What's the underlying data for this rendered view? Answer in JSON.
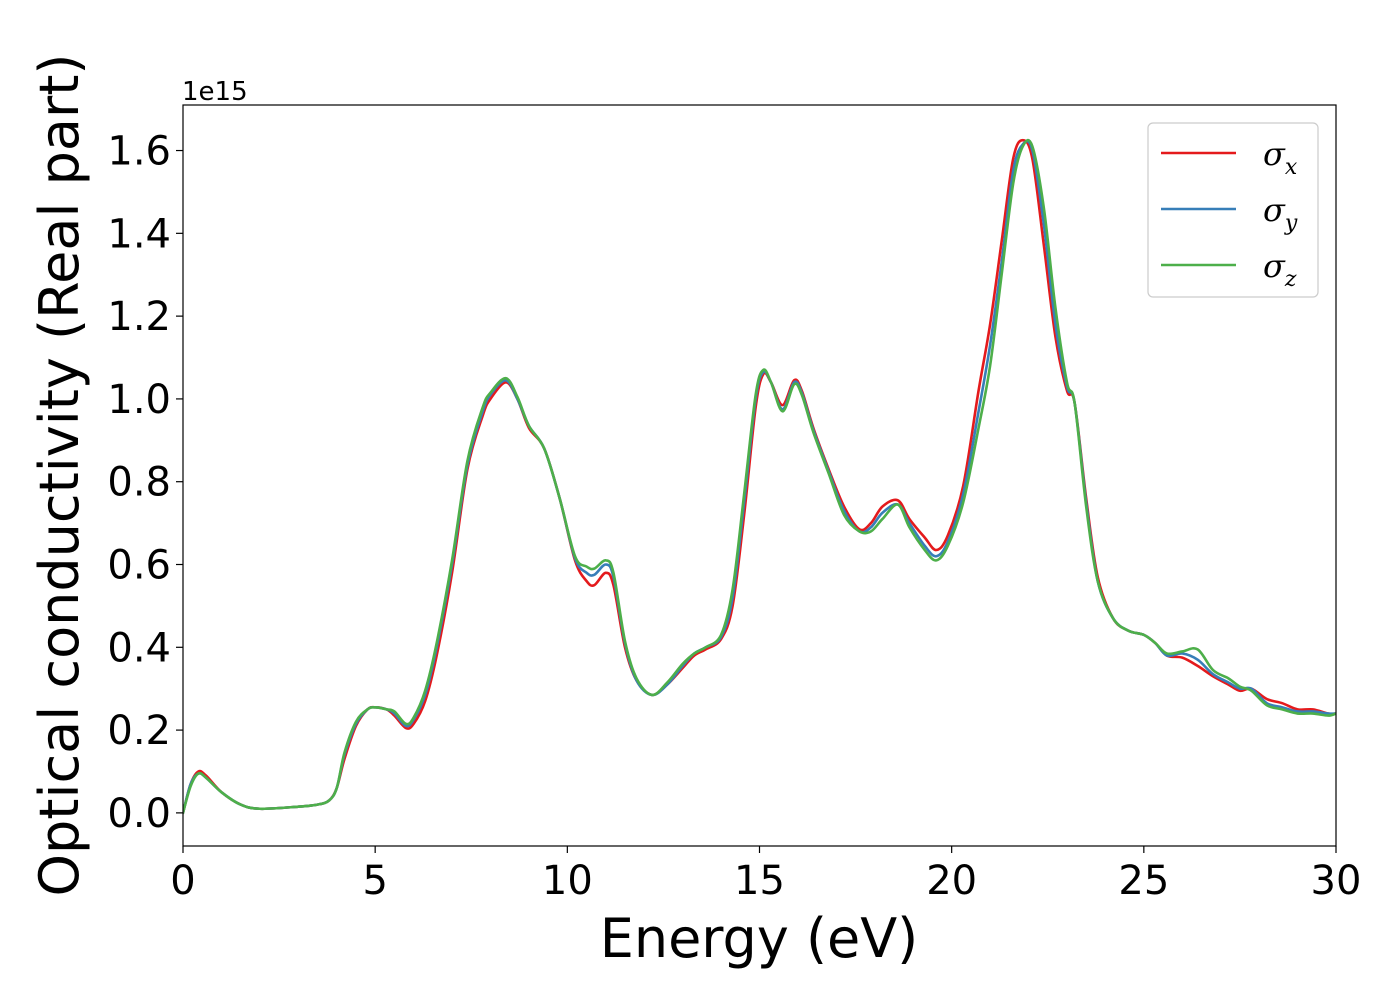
{
  "chart_data": {
    "type": "line",
    "title": "",
    "xlabel": "Energy (eV)",
    "ylabel": "Optical conductivity (Real part)",
    "y_offset_label": "1e15",
    "xlim": [
      0,
      30
    ],
    "ylim": [
      -0.08,
      1.71
    ],
    "xticks": [
      0,
      5,
      10,
      15,
      20,
      25,
      30
    ],
    "xtick_labels": [
      "0",
      "5",
      "10",
      "15",
      "20",
      "25",
      "30"
    ],
    "yticks": [
      0.0,
      0.2,
      0.4,
      0.6,
      0.8,
      1.0,
      1.2,
      1.4,
      1.6
    ],
    "ytick_labels": [
      "0.0",
      "0.2",
      "0.4",
      "0.6",
      "0.8",
      "1.0",
      "1.2",
      "1.4",
      "1.6"
    ],
    "grid": false,
    "legend_position": "top-right",
    "series": [
      {
        "name": "σx",
        "legend": {
          "base": "σ",
          "sub": "x"
        },
        "color": "#e41a1c",
        "points": [
          [
            0,
            0
          ],
          [
            0.2,
            0.07
          ],
          [
            0.4,
            0.1
          ],
          [
            0.6,
            0.09
          ],
          [
            1.0,
            0.05
          ],
          [
            1.5,
            0.02
          ],
          [
            2.0,
            0.01
          ],
          [
            3.0,
            0.015
          ],
          [
            3.5,
            0.02
          ],
          [
            3.8,
            0.03
          ],
          [
            4.0,
            0.06
          ],
          [
            4.2,
            0.13
          ],
          [
            4.5,
            0.21
          ],
          [
            4.8,
            0.25
          ],
          [
            5.0,
            0.255
          ],
          [
            5.3,
            0.25
          ],
          [
            5.5,
            0.235
          ],
          [
            5.8,
            0.205
          ],
          [
            6.0,
            0.215
          ],
          [
            6.3,
            0.27
          ],
          [
            6.6,
            0.38
          ],
          [
            7.0,
            0.58
          ],
          [
            7.4,
            0.83
          ],
          [
            7.8,
            0.96
          ],
          [
            8.0,
            1.0
          ],
          [
            8.4,
            1.04
          ],
          [
            8.7,
            1.0
          ],
          [
            9.0,
            0.93
          ],
          [
            9.4,
            0.88
          ],
          [
            9.8,
            0.76
          ],
          [
            10.2,
            0.61
          ],
          [
            10.5,
            0.56
          ],
          [
            10.7,
            0.55
          ],
          [
            11.0,
            0.58
          ],
          [
            11.2,
            0.55
          ],
          [
            11.5,
            0.4
          ],
          [
            11.8,
            0.32
          ],
          [
            12.2,
            0.285
          ],
          [
            12.6,
            0.31
          ],
          [
            13.0,
            0.35
          ],
          [
            13.3,
            0.38
          ],
          [
            13.6,
            0.395
          ],
          [
            14.0,
            0.42
          ],
          [
            14.3,
            0.5
          ],
          [
            14.6,
            0.72
          ],
          [
            14.9,
            0.98
          ],
          [
            15.1,
            1.06
          ],
          [
            15.3,
            1.04
          ],
          [
            15.6,
            0.985
          ],
          [
            15.9,
            1.045
          ],
          [
            16.1,
            1.02
          ],
          [
            16.4,
            0.93
          ],
          [
            16.8,
            0.83
          ],
          [
            17.2,
            0.74
          ],
          [
            17.6,
            0.685
          ],
          [
            17.9,
            0.7
          ],
          [
            18.2,
            0.74
          ],
          [
            18.6,
            0.755
          ],
          [
            18.9,
            0.71
          ],
          [
            19.3,
            0.665
          ],
          [
            19.6,
            0.635
          ],
          [
            19.9,
            0.67
          ],
          [
            20.3,
            0.79
          ],
          [
            20.7,
            1.02
          ],
          [
            21.0,
            1.18
          ],
          [
            21.3,
            1.38
          ],
          [
            21.6,
            1.58
          ],
          [
            21.85,
            1.625
          ],
          [
            22.1,
            1.58
          ],
          [
            22.4,
            1.37
          ],
          [
            22.7,
            1.15
          ],
          [
            23.0,
            1.02
          ],
          [
            23.2,
            0.99
          ],
          [
            23.5,
            0.76
          ],
          [
            23.8,
            0.57
          ],
          [
            24.2,
            0.47
          ],
          [
            24.6,
            0.44
          ],
          [
            25.0,
            0.43
          ],
          [
            25.3,
            0.41
          ],
          [
            25.6,
            0.38
          ],
          [
            26.0,
            0.375
          ],
          [
            26.4,
            0.355
          ],
          [
            26.8,
            0.33
          ],
          [
            27.2,
            0.31
          ],
          [
            27.5,
            0.295
          ],
          [
            27.8,
            0.3
          ],
          [
            28.2,
            0.275
          ],
          [
            28.6,
            0.265
          ],
          [
            29.0,
            0.25
          ],
          [
            29.4,
            0.25
          ],
          [
            29.8,
            0.24
          ],
          [
            30.0,
            0.24
          ]
        ]
      },
      {
        "name": "σy",
        "legend": {
          "base": "σ",
          "sub": "y"
        },
        "color": "#377eb8",
        "points": [
          [
            0,
            0
          ],
          [
            0.2,
            0.07
          ],
          [
            0.4,
            0.095
          ],
          [
            0.6,
            0.085
          ],
          [
            1.0,
            0.05
          ],
          [
            1.5,
            0.02
          ],
          [
            2.0,
            0.01
          ],
          [
            3.0,
            0.015
          ],
          [
            3.5,
            0.02
          ],
          [
            3.8,
            0.03
          ],
          [
            4.0,
            0.06
          ],
          [
            4.2,
            0.14
          ],
          [
            4.5,
            0.215
          ],
          [
            4.8,
            0.25
          ],
          [
            5.0,
            0.255
          ],
          [
            5.3,
            0.25
          ],
          [
            5.5,
            0.24
          ],
          [
            5.8,
            0.21
          ],
          [
            6.0,
            0.225
          ],
          [
            6.3,
            0.285
          ],
          [
            6.6,
            0.4
          ],
          [
            7.0,
            0.6
          ],
          [
            7.4,
            0.84
          ],
          [
            7.8,
            0.97
          ],
          [
            8.0,
            1.01
          ],
          [
            8.4,
            1.045
          ],
          [
            8.7,
            1.0
          ],
          [
            9.0,
            0.935
          ],
          [
            9.4,
            0.88
          ],
          [
            9.8,
            0.76
          ],
          [
            10.2,
            0.615
          ],
          [
            10.5,
            0.58
          ],
          [
            10.7,
            0.575
          ],
          [
            11.0,
            0.6
          ],
          [
            11.2,
            0.57
          ],
          [
            11.5,
            0.41
          ],
          [
            11.8,
            0.32
          ],
          [
            12.2,
            0.285
          ],
          [
            12.6,
            0.31
          ],
          [
            13.0,
            0.355
          ],
          [
            13.3,
            0.385
          ],
          [
            13.6,
            0.4
          ],
          [
            14.0,
            0.425
          ],
          [
            14.3,
            0.52
          ],
          [
            14.6,
            0.75
          ],
          [
            14.9,
            1.0
          ],
          [
            15.1,
            1.065
          ],
          [
            15.3,
            1.04
          ],
          [
            15.6,
            0.975
          ],
          [
            15.9,
            1.04
          ],
          [
            16.1,
            1.015
          ],
          [
            16.4,
            0.925
          ],
          [
            16.8,
            0.825
          ],
          [
            17.2,
            0.73
          ],
          [
            17.6,
            0.68
          ],
          [
            17.9,
            0.69
          ],
          [
            18.2,
            0.725
          ],
          [
            18.6,
            0.745
          ],
          [
            18.9,
            0.7
          ],
          [
            19.3,
            0.645
          ],
          [
            19.6,
            0.62
          ],
          [
            19.9,
            0.655
          ],
          [
            20.3,
            0.77
          ],
          [
            20.7,
            0.97
          ],
          [
            21.0,
            1.13
          ],
          [
            21.3,
            1.33
          ],
          [
            21.6,
            1.55
          ],
          [
            21.85,
            1.615
          ],
          [
            22.1,
            1.6
          ],
          [
            22.4,
            1.42
          ],
          [
            22.7,
            1.18
          ],
          [
            23.0,
            1.03
          ],
          [
            23.2,
            0.99
          ],
          [
            23.5,
            0.75
          ],
          [
            23.8,
            0.56
          ],
          [
            24.2,
            0.47
          ],
          [
            24.6,
            0.44
          ],
          [
            25.0,
            0.43
          ],
          [
            25.3,
            0.41
          ],
          [
            25.6,
            0.38
          ],
          [
            26.0,
            0.385
          ],
          [
            26.4,
            0.37
          ],
          [
            26.8,
            0.335
          ],
          [
            27.2,
            0.315
          ],
          [
            27.5,
            0.3
          ],
          [
            27.8,
            0.3
          ],
          [
            28.2,
            0.265
          ],
          [
            28.6,
            0.255
          ],
          [
            29.0,
            0.245
          ],
          [
            29.4,
            0.245
          ],
          [
            29.8,
            0.24
          ],
          [
            30.0,
            0.24
          ]
        ]
      },
      {
        "name": "σz",
        "legend": {
          "base": "σ",
          "sub": "z"
        },
        "color": "#4daf4a",
        "points": [
          [
            0,
            0
          ],
          [
            0.2,
            0.065
          ],
          [
            0.4,
            0.095
          ],
          [
            0.6,
            0.085
          ],
          [
            1.0,
            0.05
          ],
          [
            1.5,
            0.02
          ],
          [
            2.0,
            0.01
          ],
          [
            3.0,
            0.015
          ],
          [
            3.5,
            0.02
          ],
          [
            3.8,
            0.03
          ],
          [
            4.0,
            0.06
          ],
          [
            4.2,
            0.145
          ],
          [
            4.5,
            0.22
          ],
          [
            4.8,
            0.25
          ],
          [
            5.0,
            0.255
          ],
          [
            5.3,
            0.25
          ],
          [
            5.5,
            0.245
          ],
          [
            5.8,
            0.215
          ],
          [
            6.0,
            0.23
          ],
          [
            6.3,
            0.295
          ],
          [
            6.6,
            0.41
          ],
          [
            7.0,
            0.61
          ],
          [
            7.4,
            0.85
          ],
          [
            7.8,
            0.98
          ],
          [
            8.0,
            1.015
          ],
          [
            8.4,
            1.05
          ],
          [
            8.7,
            1.005
          ],
          [
            9.0,
            0.935
          ],
          [
            9.4,
            0.88
          ],
          [
            9.8,
            0.76
          ],
          [
            10.2,
            0.62
          ],
          [
            10.5,
            0.595
          ],
          [
            10.7,
            0.59
          ],
          [
            11.0,
            0.61
          ],
          [
            11.2,
            0.58
          ],
          [
            11.5,
            0.415
          ],
          [
            11.8,
            0.325
          ],
          [
            12.2,
            0.285
          ],
          [
            12.6,
            0.315
          ],
          [
            13.0,
            0.36
          ],
          [
            13.3,
            0.385
          ],
          [
            13.6,
            0.4
          ],
          [
            14.0,
            0.43
          ],
          [
            14.3,
            0.54
          ],
          [
            14.6,
            0.77
          ],
          [
            14.9,
            1.01
          ],
          [
            15.1,
            1.07
          ],
          [
            15.3,
            1.04
          ],
          [
            15.6,
            0.97
          ],
          [
            15.9,
            1.035
          ],
          [
            16.1,
            1.01
          ],
          [
            16.4,
            0.92
          ],
          [
            16.8,
            0.82
          ],
          [
            17.2,
            0.72
          ],
          [
            17.6,
            0.68
          ],
          [
            17.9,
            0.68
          ],
          [
            18.2,
            0.71
          ],
          [
            18.6,
            0.745
          ],
          [
            18.9,
            0.69
          ],
          [
            19.3,
            0.635
          ],
          [
            19.6,
            0.61
          ],
          [
            19.9,
            0.645
          ],
          [
            20.3,
            0.75
          ],
          [
            20.7,
            0.93
          ],
          [
            21.0,
            1.08
          ],
          [
            21.3,
            1.3
          ],
          [
            21.6,
            1.52
          ],
          [
            21.85,
            1.61
          ],
          [
            22.1,
            1.61
          ],
          [
            22.4,
            1.46
          ],
          [
            22.7,
            1.22
          ],
          [
            23.0,
            1.04
          ],
          [
            23.2,
            0.99
          ],
          [
            23.5,
            0.74
          ],
          [
            23.8,
            0.56
          ],
          [
            24.2,
            0.47
          ],
          [
            24.6,
            0.44
          ],
          [
            25.0,
            0.43
          ],
          [
            25.3,
            0.41
          ],
          [
            25.6,
            0.385
          ],
          [
            26.0,
            0.39
          ],
          [
            26.4,
            0.395
          ],
          [
            26.8,
            0.345
          ],
          [
            27.2,
            0.325
          ],
          [
            27.5,
            0.305
          ],
          [
            27.8,
            0.295
          ],
          [
            28.2,
            0.26
          ],
          [
            28.6,
            0.25
          ],
          [
            29.0,
            0.24
          ],
          [
            29.4,
            0.24
          ],
          [
            29.8,
            0.235
          ],
          [
            30.0,
            0.24
          ]
        ]
      }
    ]
  }
}
